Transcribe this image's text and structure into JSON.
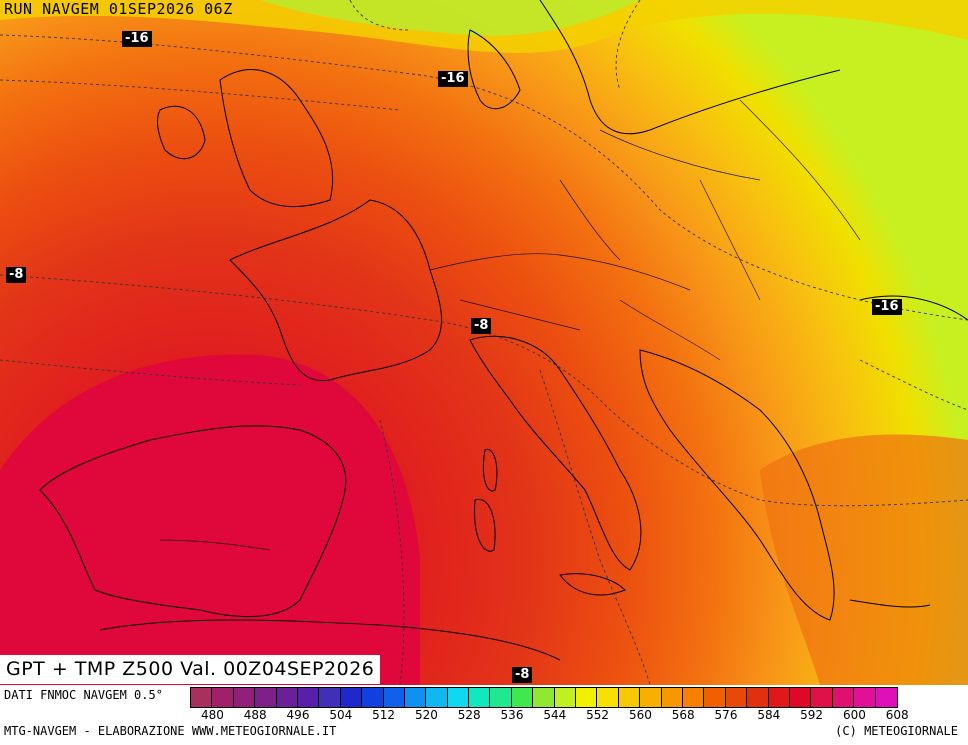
{
  "header": {
    "run_title": "RUN NAVGEM 01SEP2026 06Z"
  },
  "valid_caption": "GPT + TMP Z500 Val. 00Z04SEP2026",
  "contour_labels": [
    "-16",
    "-16",
    "-8",
    "-8",
    "-16",
    "-8"
  ],
  "legend": {
    "source": "DATI FNMOC NAVGEM 0.5°",
    "ticks": [
      "480",
      "488",
      "496",
      "504",
      "512",
      "520",
      "528",
      "536",
      "544",
      "552",
      "560",
      "568",
      "576",
      "584",
      "592",
      "600",
      "608"
    ],
    "colors": [
      "#a8305e",
      "#a0206a",
      "#90207a",
      "#7e208a",
      "#6a2098",
      "#5820a8",
      "#4030b8",
      "#2028cc",
      "#1040e0",
      "#1060ec",
      "#1090f0",
      "#10b8f0",
      "#10d8f0",
      "#10e8c0",
      "#20e890",
      "#40e850",
      "#90e830",
      "#c0f020",
      "#f0f000",
      "#f8e000",
      "#f8c800",
      "#f8b000",
      "#f89800",
      "#f88000",
      "#f06000",
      "#e84808",
      "#e03010",
      "#e01818",
      "#e00828",
      "#e01048",
      "#e01070",
      "#e01098",
      "#e010b8"
    ]
  },
  "footer": {
    "credit_left": "MTG-NAVGEM - ELABORAZIONE WWW.METEOGIORNALE.IT",
    "credit_right": "(C) METEOGIORNALE"
  }
}
